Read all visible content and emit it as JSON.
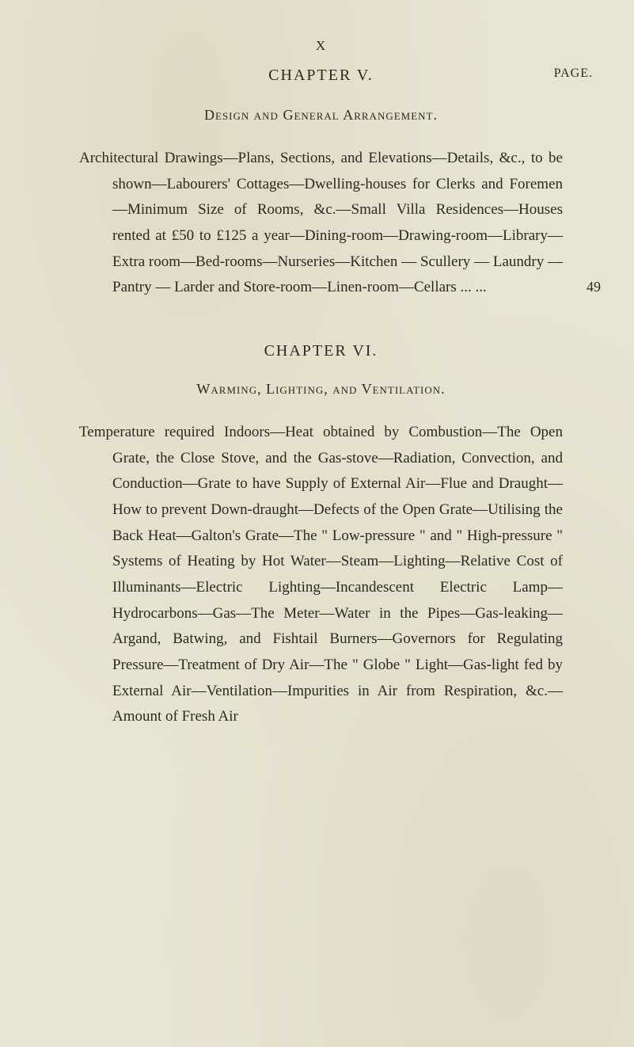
{
  "page": {
    "roman": "X",
    "page_label": "PAGE.",
    "background_color": "#e8e4d4",
    "text_color": "#2a2a1f",
    "base_fontsize": 19,
    "line_height": 1.72
  },
  "chapter5": {
    "title": "CHAPTER V.",
    "subtitle": "Design and General Arrangement.",
    "body": "Architectural Drawings—Plans, Sections, and Eleva­tions—Details, &c., to be shown—Labourers' Cottages—Dwelling-houses for Clerks and Fore­men—Minimum Size of Rooms, &c.—Small Villa Residences—Houses rented at £50 to £125 a year—Dining-room—Drawing-room—Library—Extra room—Bed-rooms—Nurseries—Kitchen — Scullery — Laundry — Pantry — Larder and Store-room—Linen-room—Cellars   ...   ...",
    "page_number": "49"
  },
  "chapter6": {
    "title": "CHAPTER VI.",
    "subtitle": "Warming, Lighting, and Ventilation.",
    "body": "Temperature required Indoors—Heat obtained by Combustion—The Open Grate, the Close Stove, and the Gas-stove—Radiation, Convection, and Conduction—Grate to have Supply of External Air—Flue and Draught—How to prevent Down-draught—Defects of the Open Grate—Utilising the Back Heat—Galton's Grate—The \" Low-pressure \" and \" High-pressure \" Systems of Heating by Hot Water—Steam—Lighting—Relative Cost of Illuminants—Electric Lighting—Incandescent Electric Lamp—Hydrocarbons—Gas—The Meter—Water in the Pipes—Gas-leaking—Argand, Batwing, and Fishtail Burners—Governors for Regulating Pressure—Treatment of Dry Air—The \" Globe \" Light—Gas-light fed by External Air—Ventilation—Impurities in Air from Respiration, &c.—Amount of Fresh Air"
  }
}
